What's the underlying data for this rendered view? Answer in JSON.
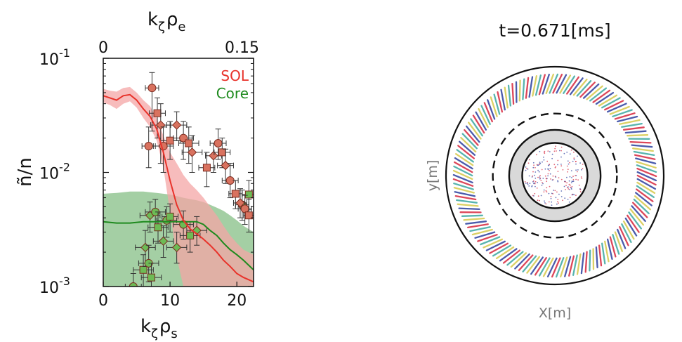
{
  "colors": {
    "sol": "#e8322a",
    "sol_marker": "#d9725f",
    "sol_band": "#f4a5a5",
    "core": "#1e8a1e",
    "core_marker": "#6dbb55",
    "core_band": "#5aa85a",
    "overlap_band": "#a87058",
    "errorbar": "#333333",
    "ring_gray": "#d9d9d9",
    "stripe_red": "#d7263d",
    "stripe_blue": "#2b3f9e",
    "stripe_yellow": "#d7c84a",
    "stripe_teal": "#3aa7a0"
  },
  "chart_data": [
    {
      "type": "scatter",
      "xlabel_base": "k",
      "xlabel_sub1": "ζ",
      "xlabel_rho": "ρ",
      "xlabel_sub2": "s",
      "top_xlabel_base": "k",
      "top_xlabel_sub1": "ζ",
      "top_xlabel_rho": "ρ",
      "top_xlabel_sub2": "e",
      "ylabel": "ñ/n",
      "xlim": [
        0,
        22.5
      ],
      "ylim": [
        0.001,
        0.1
      ],
      "yscale": "log",
      "x_ticks": [
        "0",
        "10",
        "20"
      ],
      "x_tick_values": [
        0,
        10,
        20
      ],
      "top_ticks": [
        "0",
        "0.15"
      ],
      "top_tick_values": [
        0,
        0.15
      ],
      "top_axis_range": [
        0,
        0.15
      ],
      "y_tick_base": "10",
      "y_tick_exponents": [
        "-1",
        "-2",
        "-3"
      ],
      "y_tick_values": [
        0.1,
        0.01,
        0.001
      ],
      "legend_position": "top-right",
      "series": [
        {
          "name": "SOL",
          "color_key": "sol",
          "points": [
            {
              "x": 7.3,
              "y": 0.055,
              "xe": 1.0,
              "ye": [
                0.023,
                0.075
              ]
            },
            {
              "x": 8.1,
              "y": 0.033,
              "xe": 1.2,
              "ye": [
                0.02,
                0.045
              ]
            },
            {
              "x": 8.6,
              "y": 0.026,
              "xe": 1.5,
              "ye": [
                0.012,
                0.04
              ]
            },
            {
              "x": 9.0,
              "y": 0.017,
              "xe": 1.5,
              "ye": [
                0.01,
                0.025
              ]
            },
            {
              "x": 10.0,
              "y": 0.019,
              "xe": 1.5,
              "ye": [
                0.013,
                0.028
              ]
            },
            {
              "x": 11.0,
              "y": 0.026,
              "xe": 1.5,
              "ye": [
                0.019,
                0.034
              ]
            },
            {
              "x": 12.0,
              "y": 0.02,
              "xe": 1.5,
              "ye": [
                0.013,
                0.028
              ]
            },
            {
              "x": 12.8,
              "y": 0.018,
              "xe": 1.5,
              "ye": [
                0.012,
                0.025
              ]
            },
            {
              "x": 13.3,
              "y": 0.015,
              "xe": 1.5,
              "ye": [
                0.01,
                0.021
              ]
            },
            {
              "x": 6.8,
              "y": 0.017,
              "xe": 1.0,
              "ye": [
                0.011,
                0.025
              ]
            },
            {
              "x": 15.5,
              "y": 0.011,
              "xe": 1.2,
              "ye": [
                0.0075,
                0.015
              ]
            },
            {
              "x": 16.5,
              "y": 0.014,
              "xe": 1.2,
              "ye": [
                0.01,
                0.018
              ]
            },
            {
              "x": 17.2,
              "y": 0.018,
              "xe": 1.2,
              "ye": [
                0.013,
                0.024
              ]
            },
            {
              "x": 17.8,
              "y": 0.015,
              "xe": 1.2,
              "ye": [
                0.011,
                0.02
              ]
            },
            {
              "x": 18.3,
              "y": 0.0115,
              "xe": 1.2,
              "ye": [
                0.008,
                0.016
              ]
            },
            {
              "x": 19.0,
              "y": 0.0085,
              "xe": 1.2,
              "ye": [
                0.006,
                0.012
              ]
            },
            {
              "x": 19.8,
              "y": 0.0065,
              "xe": 1.0,
              "ye": [
                0.0048,
                0.0085
              ]
            },
            {
              "x": 20.5,
              "y": 0.0054,
              "xe": 1.0,
              "ye": [
                0.004,
                0.0072
              ]
            },
            {
              "x": 21.2,
              "y": 0.0048,
              "xe": 1.0,
              "ye": [
                0.0035,
                0.0063
              ]
            },
            {
              "x": 21.8,
              "y": 0.0042,
              "xe": 0.8,
              "ye": [
                0.003,
                0.0058
              ]
            }
          ],
          "fit_x": [
            0,
            1,
            2,
            3,
            4,
            5,
            6,
            7,
            8,
            9,
            10,
            11,
            12,
            13,
            14,
            15,
            16,
            17,
            18,
            19,
            20,
            21,
            22.5
          ],
          "fit_y": [
            0.047,
            0.045,
            0.043,
            0.047,
            0.048,
            0.043,
            0.036,
            0.031,
            0.024,
            0.015,
            0.0085,
            0.0052,
            0.0038,
            0.0032,
            0.0029,
            0.0026,
            0.0023,
            0.002,
            0.0017,
            0.0015,
            0.0013,
            0.0012,
            0.0011
          ],
          "band_low": [
            0.041,
            0.039,
            0.036,
            0.04,
            0.042,
            0.037,
            0.03,
            0.025,
            0.019,
            0.011,
            0.0045,
            0.0018,
            0.001,
            0.001,
            0.001,
            0.001,
            0.001,
            0.001,
            0.001,
            0.001,
            0.001,
            0.001,
            0.001
          ],
          "band_high": [
            0.054,
            0.052,
            0.051,
            0.055,
            0.056,
            0.05,
            0.043,
            0.038,
            0.03,
            0.021,
            0.015,
            0.012,
            0.0095,
            0.008,
            0.007,
            0.006,
            0.005,
            0.0042,
            0.0034,
            0.0028,
            0.0024,
            0.0021,
            0.0019
          ]
        },
        {
          "name": "Core",
          "color_key": "core",
          "points": [
            {
              "x": 4.5,
              "y": 0.001,
              "xe": 1.2,
              "ye": [
                0.00085,
                0.0013
              ]
            },
            {
              "x": 6.0,
              "y": 0.0014,
              "xe": 1.5,
              "ye": [
                0.001,
                0.0019
              ]
            },
            {
              "x": 6.3,
              "y": 0.0022,
              "xe": 1.5,
              "ye": [
                0.0015,
                0.0031
              ]
            },
            {
              "x": 6.8,
              "y": 0.0016,
              "xe": 1.5,
              "ye": [
                0.0011,
                0.0023
              ]
            },
            {
              "x": 7.2,
              "y": 0.0012,
              "xe": 1.5,
              "ye": [
                0.00095,
                0.0016
              ]
            },
            {
              "x": 7.0,
              "y": 0.0042,
              "xe": 1.5,
              "ye": [
                0.003,
                0.0055
              ]
            },
            {
              "x": 7.8,
              "y": 0.0045,
              "xe": 1.5,
              "ye": [
                0.0033,
                0.0058
              ]
            },
            {
              "x": 8.2,
              "y": 0.0033,
              "xe": 1.5,
              "ye": [
                0.0024,
                0.0045
              ]
            },
            {
              "x": 9.0,
              "y": 0.0025,
              "xe": 1.5,
              "ye": [
                0.0018,
                0.0034
              ]
            },
            {
              "x": 9.5,
              "y": 0.0038,
              "xe": 1.5,
              "ye": [
                0.0027,
                0.005
              ]
            },
            {
              "x": 10.0,
              "y": 0.0041,
              "xe": 1.2,
              "ye": [
                0.003,
                0.0053
              ]
            },
            {
              "x": 11.0,
              "y": 0.0022,
              "xe": 1.5,
              "ye": [
                0.0016,
                0.003
              ]
            },
            {
              "x": 12.0,
              "y": 0.0035,
              "xe": 1.5,
              "ye": [
                0.0026,
                0.0046
              ]
            },
            {
              "x": 13.0,
              "y": 0.0028,
              "xe": 1.5,
              "ye": [
                0.002,
                0.0037
              ]
            },
            {
              "x": 14.0,
              "y": 0.0031,
              "xe": 1.5,
              "ye": [
                0.0023,
                0.0041
              ]
            },
            {
              "x": 20.8,
              "y": 0.0052,
              "xe": 1.0,
              "ye": [
                0.0038,
                0.007
              ]
            },
            {
              "x": 21.8,
              "y": 0.0064,
              "xe": 1.0,
              "ye": [
                0.0047,
                0.0085
              ]
            }
          ],
          "fit_x": [
            0,
            2,
            4,
            6,
            8,
            10,
            12,
            14,
            15,
            16,
            17,
            18,
            19,
            20,
            21,
            22.5
          ],
          "fit_y": [
            0.0037,
            0.0036,
            0.0036,
            0.0037,
            0.0037,
            0.0037,
            0.0037,
            0.0037,
            0.0035,
            0.0031,
            0.0028,
            0.0024,
            0.0021,
            0.0019,
            0.0017,
            0.0014
          ],
          "band_low": [
            0.001,
            0.001,
            0.001,
            0.001,
            0.001,
            0.001,
            0.001,
            0.001,
            0.001,
            0.001,
            0.001,
            0.001,
            0.001,
            0.001,
            0.001,
            0.001
          ],
          "band_high": [
            0.0065,
            0.0066,
            0.0068,
            0.0068,
            0.0066,
            0.0064,
            0.006,
            0.0057,
            0.0055,
            0.0052,
            0.0049,
            0.0046,
            0.0042,
            0.0038,
            0.0034,
            0.003
          ]
        }
      ]
    },
    {
      "type": "other",
      "title": "t=0.671[ms]",
      "xlabel": "X[m]",
      "ylabel": "y[m]",
      "rings": [
        {
          "radius_frac": 1.0,
          "style": "solid"
        },
        {
          "radius_frac": 0.57,
          "style": "dashed"
        },
        {
          "radius_frac": 0.42,
          "style": "solid"
        },
        {
          "radius_frac": 0.3,
          "style": "solid"
        }
      ]
    }
  ]
}
